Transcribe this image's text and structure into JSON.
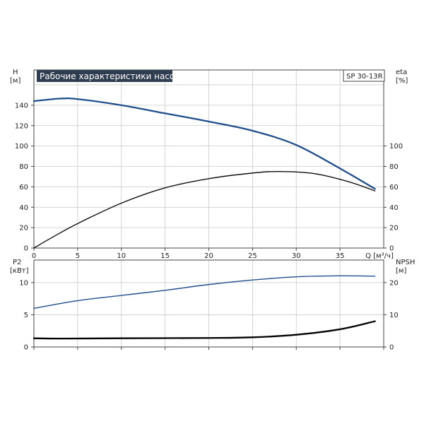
{
  "title_box": {
    "text": "Рабочие характеристики насоса",
    "bg": "#2e3d4f",
    "fg": "#ffffff"
  },
  "model_label": "SP 30-13R",
  "chart_data": [
    {
      "type": "line",
      "panel": "top",
      "x_axis": {
        "label": "Q [м³/ч]",
        "ticks": [
          0,
          5,
          10,
          15,
          20,
          25,
          30,
          35
        ],
        "range": [
          0,
          40
        ]
      },
      "left_axis": {
        "label_line1": "H",
        "label_line2": "[м]",
        "ticks": [
          0,
          20,
          40,
          60,
          80,
          100,
          120,
          140
        ],
        "range": [
          0,
          160
        ]
      },
      "right_axis": {
        "label_line1": "eta",
        "label_line2": "[%]",
        "ticks": [
          0,
          20,
          40,
          60,
          80,
          100
        ],
        "range": [
          0,
          160
        ]
      },
      "grid": true,
      "series": [
        {
          "axis": "left",
          "color": "#1f4e8c",
          "points": [
            [
              0,
              144
            ],
            [
              3,
              146.5
            ],
            [
              5,
              146
            ],
            [
              10,
              140
            ],
            [
              15,
              132
            ],
            [
              20,
              124
            ],
            [
              25,
              115
            ],
            [
              30,
              101
            ],
            [
              35,
              78
            ],
            [
              39,
              58
            ]
          ]
        },
        {
          "axis": "right",
          "color": "#111111",
          "points": [
            [
              0,
              0
            ],
            [
              2,
              10
            ],
            [
              5,
              24
            ],
            [
              10,
              44
            ],
            [
              15,
              59
            ],
            [
              20,
              68
            ],
            [
              25,
              73.5
            ],
            [
              28,
              75
            ],
            [
              32,
              73
            ],
            [
              36,
              65
            ],
            [
              39,
              56
            ]
          ]
        }
      ]
    },
    {
      "type": "line",
      "panel": "bottom",
      "x_axis": {
        "range": [
          0,
          40
        ]
      },
      "left_axis": {
        "label_line1": "P2",
        "label_line2": "[кВт]",
        "ticks": [
          0,
          5,
          10
        ],
        "range": [
          0,
          13.5
        ]
      },
      "right_axis": {
        "label_line1": "NPSH",
        "label_line2": "[м]",
        "ticks": [
          0,
          10,
          20
        ],
        "range": [
          0,
          27
        ]
      },
      "grid": true,
      "series": [
        {
          "axis": "left",
          "color": "#1f4e8c",
          "points": [
            [
              0,
              6
            ],
            [
              5,
              7.2
            ],
            [
              10,
              8
            ],
            [
              15,
              8.8
            ],
            [
              20,
              9.7
            ],
            [
              25,
              10.4
            ],
            [
              30,
              10.9
            ],
            [
              35,
              11.05
            ],
            [
              39,
              11
            ]
          ]
        },
        {
          "axis": "right",
          "color": "#000000",
          "points": [
            [
              0,
              2.7
            ],
            [
              3,
              2.6
            ],
            [
              10,
              2.7
            ],
            [
              20,
              2.8
            ],
            [
              25,
              3
            ],
            [
              30,
              3.8
            ],
            [
              35,
              5.5
            ],
            [
              39,
              8
            ]
          ]
        }
      ]
    }
  ]
}
